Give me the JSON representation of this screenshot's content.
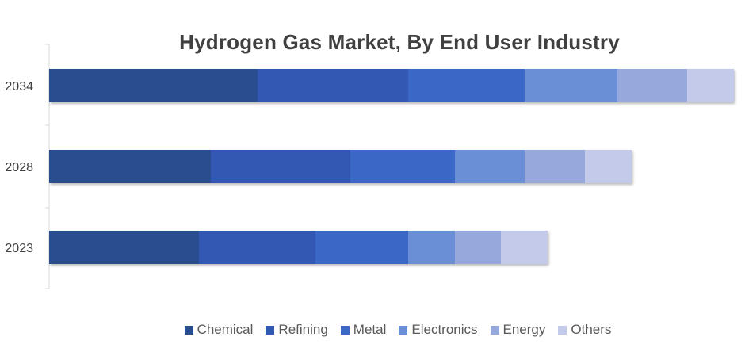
{
  "chart_data": {
    "type": "bar",
    "orientation": "horizontal",
    "stacked": true,
    "title": "Hydrogen Gas Market, By End User Industry",
    "xlabel": "",
    "ylabel": "",
    "categories": [
      "2034",
      "2028",
      "2023"
    ],
    "series": [
      {
        "name": "Chemical",
        "color": "#2a4d8f",
        "values": [
          263,
          204,
          189
        ]
      },
      {
        "name": "Refining",
        "color": "#3059b3",
        "values": [
          190,
          176,
          147
        ]
      },
      {
        "name": "Metal",
        "color": "#3a68c7",
        "values": [
          147,
          132,
          117
        ]
      },
      {
        "name": "Electronics",
        "color": "#6a8fd6",
        "values": [
          117,
          88,
          59
        ]
      },
      {
        "name": "Energy",
        "color": "#97a9dc",
        "values": [
          88,
          76,
          58
        ]
      },
      {
        "name": "Others",
        "color": "#c3caea",
        "values": [
          59,
          59,
          59
        ]
      }
    ],
    "grid": false,
    "legend_position": "bottom"
  }
}
